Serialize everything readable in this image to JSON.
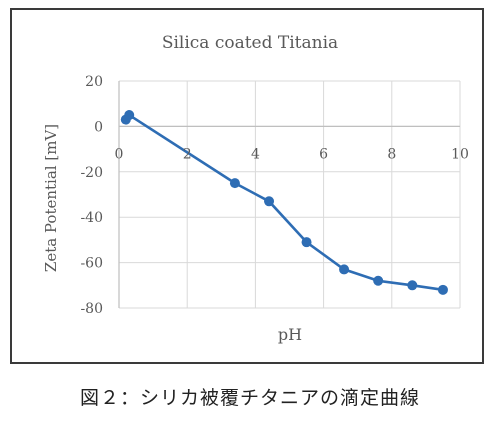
{
  "chart_data": {
    "type": "line",
    "title": "Silica coated Titania",
    "xlabel": "pH",
    "ylabel": "Zeta Potential [mV]",
    "xlim": [
      0,
      10
    ],
    "ylim": [
      -80,
      20
    ],
    "xticks": [
      "0",
      "2",
      "4",
      "6",
      "8",
      "10"
    ],
    "yticks": [
      "20",
      "0",
      "-20",
      "-40",
      "-60",
      "-80"
    ],
    "grid": true,
    "series": [
      {
        "color": "#2e6db4",
        "x": [
          0.2,
          0.3,
          3.4,
          4.4,
          5.5,
          6.6,
          7.6,
          8.6,
          9.5
        ],
        "y": [
          3,
          5,
          -25,
          -33,
          -51,
          -63,
          -68,
          -70,
          -72
        ]
      }
    ]
  },
  "caption": "図２：シリカ被覆チタニアの滴定曲線"
}
